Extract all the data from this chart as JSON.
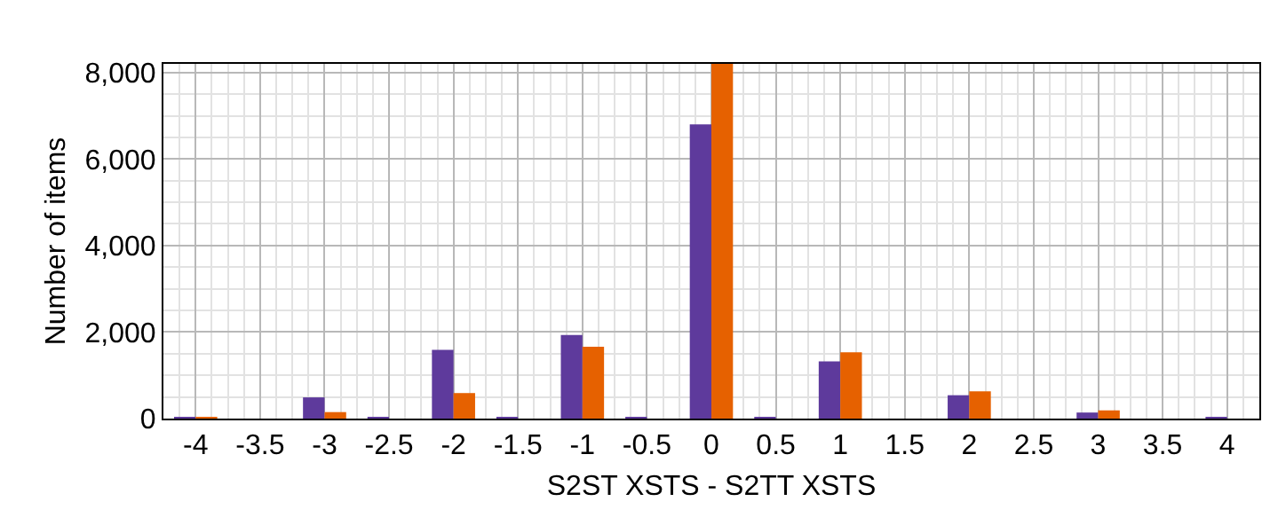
{
  "chart_data": {
    "type": "bar",
    "xlabel": "S2ST XSTS - S2TT XSTS",
    "ylabel": "Number of items",
    "categories": [
      "-4",
      "-3.5",
      "-3",
      "-2.5",
      "-2",
      "-1.5",
      "-1",
      "-0.5",
      "0",
      "0.5",
      "1",
      "1.5",
      "2",
      "2.5",
      "3",
      "3.5",
      "4"
    ],
    "series": [
      {
        "color": "#5e3a9c",
        "values": [
          10,
          0,
          490,
          10,
          1590,
          10,
          1930,
          10,
          6800,
          10,
          1320,
          0,
          540,
          0,
          140,
          0,
          10
        ]
      },
      {
        "color": "#e66100",
        "values": [
          10,
          0,
          150,
          0,
          590,
          0,
          1660,
          0,
          8200,
          0,
          1530,
          0,
          630,
          0,
          190,
          0,
          0
        ]
      }
    ],
    "ylim": [
      0,
      8200
    ],
    "yticks": [
      {
        "value": 0,
        "label": "0"
      },
      {
        "value": 2000,
        "label": "2,000"
      },
      {
        "value": 4000,
        "label": "4,000"
      },
      {
        "value": 6000,
        "label": "6,000"
      },
      {
        "value": 8000,
        "label": "8,000"
      }
    ],
    "grid": true
  }
}
